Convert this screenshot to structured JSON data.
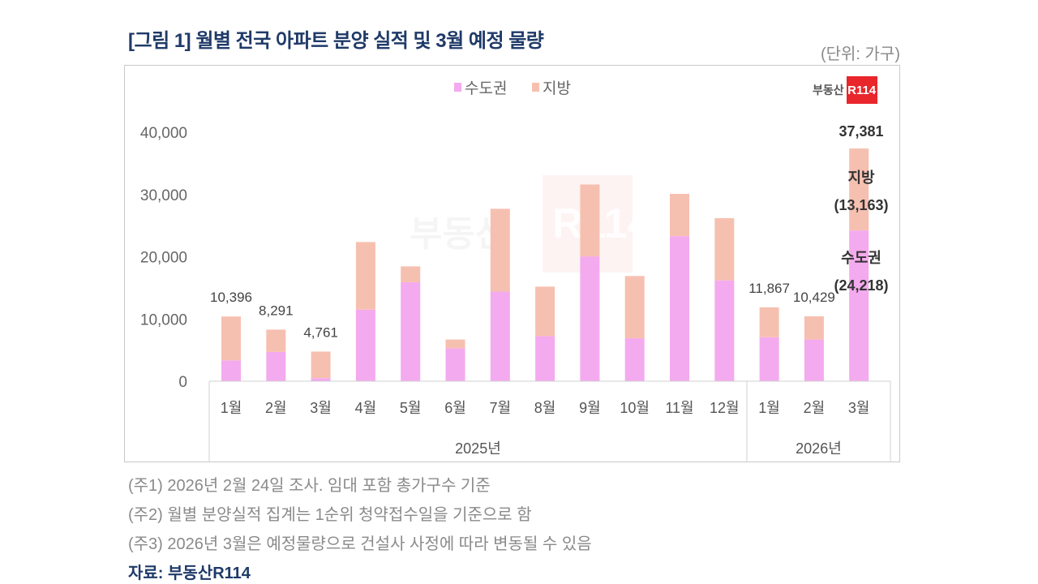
{
  "header": {
    "title": "[그림 1] 월별 전국 아파트 분양 실적 및 3월 예정 물량",
    "unit": "(단위: 가구)"
  },
  "logo": {
    "text": "부동산",
    "badge": "R114",
    "color": "#e8262c"
  },
  "watermark": {
    "text": "부동산",
    "badge": "R114"
  },
  "chart_data": {
    "type": "bar",
    "stacked": true,
    "title": "",
    "xlabel": "",
    "ylabel": "",
    "ylim": [
      0,
      40000
    ],
    "yticks": [
      "0",
      "10,000",
      "20,000",
      "30,000",
      "40,000"
    ],
    "ytick_values": [
      0,
      10000,
      20000,
      30000,
      40000
    ],
    "grid": false,
    "legend_position": "top",
    "categories": [
      "1월",
      "2월",
      "3월",
      "4월",
      "5월",
      "6월",
      "7월",
      "8월",
      "9월",
      "10월",
      "11월",
      "12월",
      "1월",
      "2월",
      "3월"
    ],
    "groups": [
      {
        "label": "2025년",
        "count": 12
      },
      {
        "label": "2026년",
        "count": 3
      }
    ],
    "series": [
      {
        "name": "수도권",
        "color": "#f4aaee",
        "values": [
          3350,
          4700,
          500,
          11500,
          15900,
          5300,
          14400,
          7250,
          20050,
          6900,
          23300,
          16200,
          7070,
          6700,
          24218
        ]
      },
      {
        "name": "지방",
        "color": "#f6c0b0",
        "values": [
          7046,
          3591,
          4261,
          10860,
          2550,
          1400,
          13300,
          7950,
          11550,
          10000,
          6800,
          10000,
          4797,
          3729,
          13163
        ]
      }
    ],
    "data_labels": [
      {
        "index": 0,
        "text": "10,396"
      },
      {
        "index": 1,
        "text": "8,291"
      },
      {
        "index": 2,
        "text": "4,761"
      },
      {
        "index": 12,
        "text": "11,867"
      },
      {
        "index": 13,
        "text": "10,429"
      }
    ],
    "annotations": {
      "total": "37,381",
      "region_label": "지방",
      "region_value": "(13,163)",
      "metro_label": "수도권",
      "metro_value": "(24,218)"
    }
  },
  "notes": [
    "(주1) 2026년 2월 24일 조사. 임대 포함 총가구수 기준",
    "(주2) 월별 분양실적 집계는 1순위 청약접수일을 기준으로 함",
    "(주3) 2026년 3월은 예정물량으로 건설사 사정에 따라 변동될 수 있음"
  ],
  "source": "자료: 부동산R114"
}
